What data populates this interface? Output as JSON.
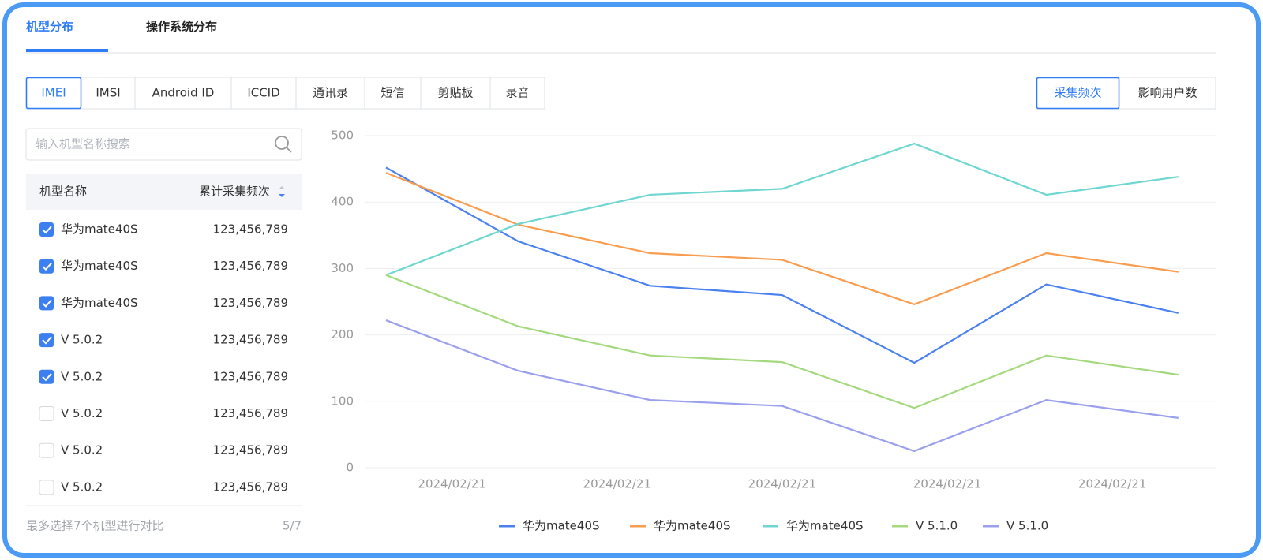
{
  "tabs": [
    {
      "label": "机型分布",
      "active": true
    },
    {
      "label": "操作系统分布",
      "active": false
    }
  ],
  "identifiers": [
    {
      "label": "IMEI",
      "active": true
    },
    {
      "label": "IMSI",
      "active": false
    },
    {
      "label": "Android ID",
      "active": false
    },
    {
      "label": "ICCID",
      "active": false
    },
    {
      "label": "通讯录",
      "active": false
    },
    {
      "label": "短信",
      "active": false
    },
    {
      "label": "剪贴板",
      "active": false
    },
    {
      "label": "录音",
      "active": false
    }
  ],
  "metrics": [
    {
      "label": "采集频次",
      "active": true
    },
    {
      "label": "影响用户数",
      "active": false
    }
  ],
  "search": {
    "placeholder": "输入机型名称搜索"
  },
  "table": {
    "headers": [
      "机型名称",
      "累计采集频次"
    ],
    "rows": [
      {
        "name": "华为mate40S",
        "value": "123,456,789",
        "checked": true
      },
      {
        "name": "华为mate40S",
        "value": "123,456,789",
        "checked": true
      },
      {
        "name": "华为mate40S",
        "value": "123,456,789",
        "checked": true
      },
      {
        "name": "V 5.0.2",
        "value": "123,456,789",
        "checked": true
      },
      {
        "name": "V 5.0.2",
        "value": "123,456,789",
        "checked": true
      },
      {
        "name": "V 5.0.2",
        "value": "123,456,789",
        "checked": false
      },
      {
        "name": "V 5.0.2",
        "value": "123,456,789",
        "checked": false
      },
      {
        "name": "V 5.0.2",
        "value": "123,456,789",
        "checked": false
      }
    ]
  },
  "footer": {
    "note": "最多选择7个机型进行对比",
    "count": "5/7"
  },
  "chart_data": {
    "type": "line",
    "categories": [
      null,
      null,
      null,
      null,
      null,
      null,
      null
    ],
    "xticks": [
      {
        "value": 0.5,
        "label": "2024/02/21"
      },
      {
        "value": 1.75,
        "label": "2024/02/21"
      },
      {
        "value": 3,
        "label": "2024/02/21"
      },
      {
        "value": 4.25,
        "label": "2024/02/21"
      },
      {
        "value": 5.5,
        "label": "2024/02/21"
      }
    ],
    "ylim": [
      0,
      500
    ],
    "yticks": [
      0,
      100,
      200,
      300,
      400,
      500
    ],
    "grid": true,
    "legend": "bottom",
    "series": [
      {
        "name": "华为mate40S",
        "color": "#4a80f0",
        "values": [
          452,
          341,
          274,
          260,
          158,
          276,
          233
        ]
      },
      {
        "name": "华为mate40S",
        "color": "#f89d4f",
        "values": [
          444,
          366,
          323,
          313,
          246,
          323,
          295
        ]
      },
      {
        "name": "华为mate40S",
        "color": "#6fd6d0",
        "values": [
          290,
          367,
          411,
          420,
          488,
          411,
          438
        ]
      },
      {
        "name": "V 5.1.0",
        "color": "#a5d97f",
        "values": [
          290,
          213,
          169,
          159,
          90,
          169,
          140
        ]
      },
      {
        "name": "V 5.1.0",
        "color": "#9aa0ec",
        "values": [
          222,
          146,
          102,
          93,
          25,
          102,
          75
        ]
      }
    ]
  }
}
